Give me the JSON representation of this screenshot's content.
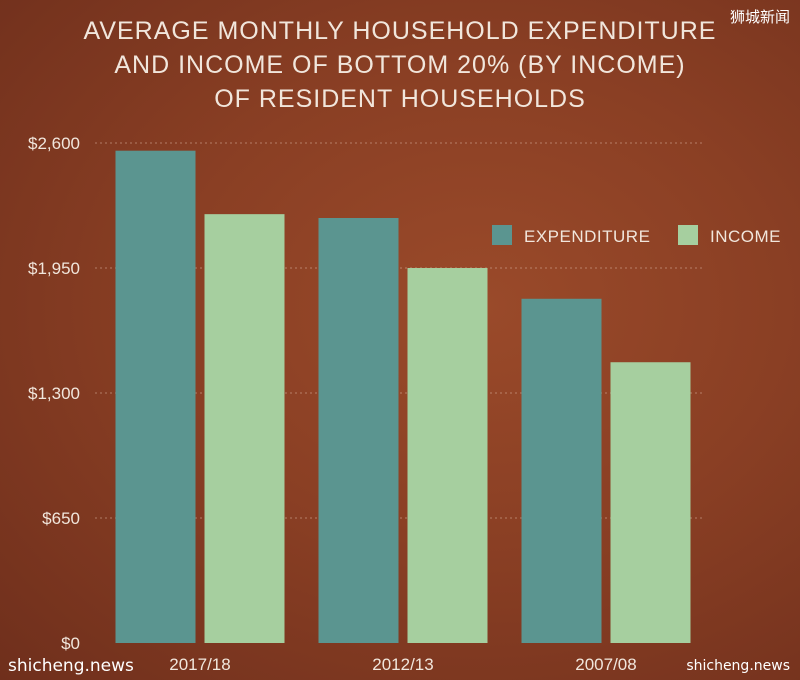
{
  "watermarks": {
    "top_right": "狮城新闻",
    "bottom_left": "shicheng.news",
    "bottom_right": "shicheng.news"
  },
  "chart_data": {
    "type": "bar",
    "title_lines": [
      "AVERAGE MONTHLY HOUSEHOLD EXPENDITURE",
      "AND INCOME OF BOTTOM 20% (BY INCOME)",
      "OF RESIDENT HOUSEHOLDS"
    ],
    "categories": [
      "2017/18",
      "2012/13",
      "2007/08"
    ],
    "series": [
      {
        "name": "EXPENDITURE",
        "color": "#5b9590",
        "values": [
          2560,
          2210,
          1790
        ]
      },
      {
        "name": "INCOME",
        "color": "#a6cf9f",
        "values": [
          2230,
          1950,
          1460
        ]
      }
    ],
    "ylim": [
      0,
      2600
    ],
    "yticks": [
      0,
      650,
      1300,
      1950,
      2600
    ],
    "ytick_labels": [
      "$0",
      "$650",
      "$1,300",
      "$1,950",
      "$2,600"
    ],
    "grid": true,
    "legend_position": "top-right"
  }
}
